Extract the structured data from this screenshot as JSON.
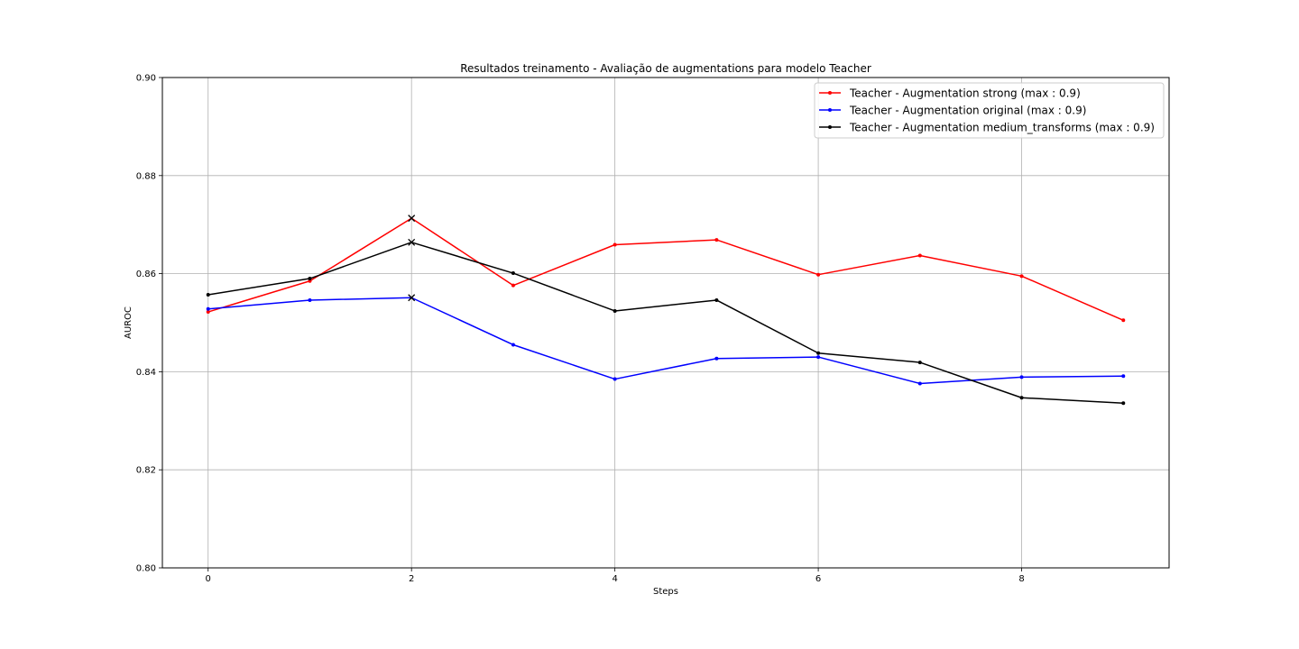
{
  "chart_data": {
    "type": "line",
    "title": "Resultados treinamento - Avaliação de augmentations para modelo Teacher",
    "xlabel": "Steps",
    "ylabel": "AUROC",
    "xlim": [
      -0.45,
      9.45
    ],
    "ylim": [
      0.8,
      0.9
    ],
    "xticks": [
      0,
      2,
      4,
      6,
      8
    ],
    "yticks": [
      0.8,
      0.82,
      0.84,
      0.86,
      0.88,
      0.9
    ],
    "xtick_labels": [
      "0",
      "2",
      "4",
      "6",
      "8"
    ],
    "ytick_labels": [
      "0.80",
      "0.82",
      "0.84",
      "0.86",
      "0.88",
      "0.90"
    ],
    "grid": true,
    "legend_position": "top-right",
    "x": [
      0,
      1,
      2,
      3,
      4,
      5,
      6,
      7,
      8,
      9
    ],
    "series": [
      {
        "name": "Teacher - Augmentation strong  (max : 0.9)",
        "color": "#ff0000",
        "values": [
          0.8522,
          0.8585,
          0.8713,
          0.8576,
          0.8659,
          0.8669,
          0.8598,
          0.8637,
          0.8595,
          0.8505
        ],
        "max_index": 2
      },
      {
        "name": "Teacher - Augmentation original  (max : 0.9)",
        "color": "#0000ff",
        "values": [
          0.8528,
          0.8546,
          0.8551,
          0.8455,
          0.8385,
          0.8427,
          0.843,
          0.8376,
          0.8389,
          0.8391
        ],
        "max_index": 2
      },
      {
        "name": "Teacher - Augmentation medium_transforms  (max : 0.9)",
        "color": "#000000",
        "values": [
          0.8557,
          0.859,
          0.8664,
          0.8601,
          0.8524,
          0.8546,
          0.8438,
          0.8419,
          0.8347,
          0.8336
        ],
        "max_index": 2
      }
    ]
  }
}
